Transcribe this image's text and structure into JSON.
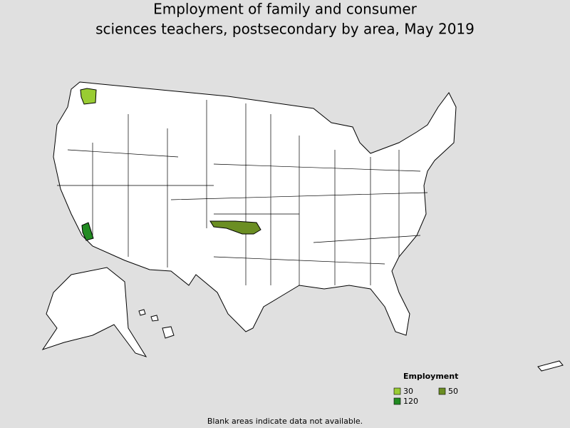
{
  "title": [
    "Employment of family and consumer",
    "sciences teachers, postsecondary by area, May 2019"
  ],
  "legend": {
    "title": "Employment",
    "items": [
      {
        "value": 30,
        "color": "#99cc33"
      },
      {
        "value": 50,
        "color": "#6b8e23"
      },
      {
        "value": 120,
        "color": "#228b22"
      }
    ]
  },
  "footnote": "Blank areas indicate data not available."
}
